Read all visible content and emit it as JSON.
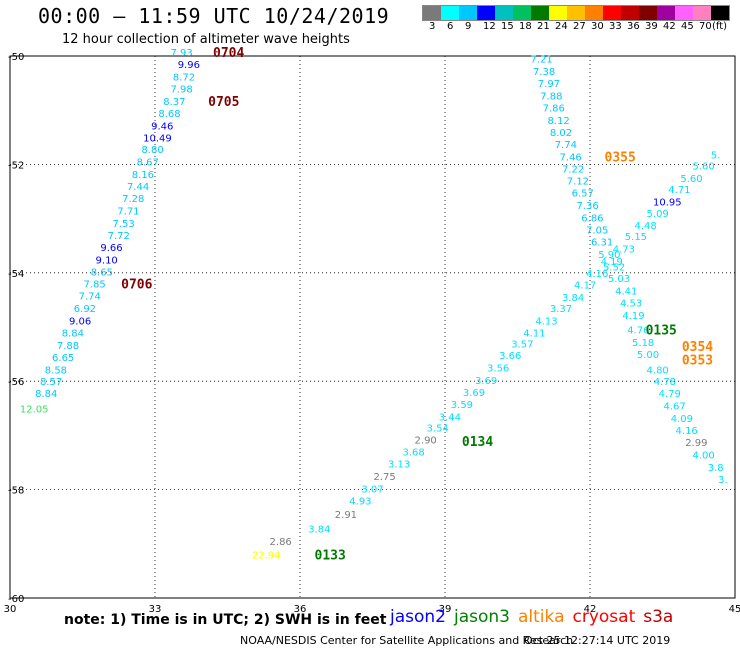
{
  "header": {
    "title": "00:00 – 11:59 UTC 10/24/2019",
    "subtitle": "12 hour collection of altimeter wave heights"
  },
  "legend": {
    "colors": [
      "#7a7a7a",
      "#00ffff",
      "#00c8ff",
      "#0000ff",
      "#00c0c0",
      "#00c060",
      "#007a00",
      "#ffff00",
      "#ffc000",
      "#ff8000",
      "#ff0000",
      "#c00000",
      "#800000",
      "#a000a0",
      "#ff60ff",
      "#ff80c0",
      "#000000"
    ],
    "labels": [
      "3",
      "6",
      "9",
      "12",
      "15",
      "18",
      "21",
      "24",
      "27",
      "30",
      "33",
      "36",
      "39",
      "42",
      "45",
      "70",
      "(ft)"
    ]
  },
  "chart_data": {
    "type": "scatter",
    "xlim": [
      30,
      45
    ],
    "ylim": [
      -60,
      -50
    ],
    "x_ticks": [
      "30",
      "33",
      "36",
      "39",
      "42",
      "45"
    ],
    "y_ticks": [
      "-50",
      "-52",
      "-54",
      "-56",
      "-58",
      "-60"
    ],
    "grid": true,
    "points": [
      {
        "x": 33.55,
        "y": -49.93,
        "v": "7.93",
        "c": "#00c8ff"
      },
      {
        "x": 33.7,
        "y": -50.15,
        "v": "9.96",
        "c": "#0000ff"
      },
      {
        "x": 33.6,
        "y": -50.38,
        "v": "8.72",
        "c": "#00c8ff"
      },
      {
        "x": 33.55,
        "y": -50.6,
        "v": "7.98",
        "c": "#00c8ff"
      },
      {
        "x": 33.4,
        "y": -50.83,
        "v": "8.37",
        "c": "#00c8ff"
      },
      {
        "x": 33.3,
        "y": -51.05,
        "v": "8.68",
        "c": "#00c8ff"
      },
      {
        "x": 33.15,
        "y": -51.28,
        "v": "9.46",
        "c": "#0000ff"
      },
      {
        "x": 33.05,
        "y": -51.5,
        "v": "10.49",
        "c": "#0000ff"
      },
      {
        "x": 32.95,
        "y": -51.72,
        "v": "8.80",
        "c": "#00c8ff"
      },
      {
        "x": 32.85,
        "y": -51.95,
        "v": "8.67",
        "c": "#00c8ff"
      },
      {
        "x": 32.75,
        "y": -52.18,
        "v": "8.16",
        "c": "#00c8ff"
      },
      {
        "x": 32.65,
        "y": -52.4,
        "v": "7.44",
        "c": "#00c8ff"
      },
      {
        "x": 32.55,
        "y": -52.62,
        "v": "7.28",
        "c": "#00c8ff"
      },
      {
        "x": 32.45,
        "y": -52.85,
        "v": "7.71",
        "c": "#00c8ff"
      },
      {
        "x": 32.35,
        "y": -53.08,
        "v": "7.53",
        "c": "#00c8ff"
      },
      {
        "x": 32.25,
        "y": -53.3,
        "v": "7.72",
        "c": "#00c8ff"
      },
      {
        "x": 32.1,
        "y": -53.52,
        "v": "9.66",
        "c": "#0000ff"
      },
      {
        "x": 32.0,
        "y": -53.75,
        "v": "9.10",
        "c": "#0000ff"
      },
      {
        "x": 31.9,
        "y": -53.98,
        "v": "8.65",
        "c": "#00c8ff"
      },
      {
        "x": 31.75,
        "y": -54.2,
        "v": "7.85",
        "c": "#00c8ff"
      },
      {
        "x": 31.65,
        "y": -54.42,
        "v": "7.74",
        "c": "#00c8ff"
      },
      {
        "x": 31.55,
        "y": -54.65,
        "v": "6.92",
        "c": "#00c8ff"
      },
      {
        "x": 31.45,
        "y": -54.88,
        "v": "9.06",
        "c": "#0000ff"
      },
      {
        "x": 31.3,
        "y": -55.1,
        "v": "8.84",
        "c": "#00c8ff"
      },
      {
        "x": 31.2,
        "y": -55.33,
        "v": "7.88",
        "c": "#00c8ff"
      },
      {
        "x": 31.1,
        "y": -55.55,
        "v": "6.65",
        "c": "#00c8ff"
      },
      {
        "x": 30.95,
        "y": -55.78,
        "v": "8.58",
        "c": "#00c8ff"
      },
      {
        "x": 30.85,
        "y": -56.0,
        "v": "8.57",
        "c": "#00c8ff"
      },
      {
        "x": 30.75,
        "y": -56.22,
        "v": "8.84",
        "c": "#00c8ff"
      },
      {
        "x": 30.5,
        "y": -56.5,
        "v": "12.05",
        "c": "#40e060"
      },
      {
        "x": 41.0,
        "y": -50.05,
        "v": "7.21",
        "c": "#00c8ff"
      },
      {
        "x": 41.05,
        "y": -50.28,
        "v": "7.38",
        "c": "#00c8ff"
      },
      {
        "x": 41.15,
        "y": -50.5,
        "v": "7.97",
        "c": "#00c8ff"
      },
      {
        "x": 41.2,
        "y": -50.73,
        "v": "7.88",
        "c": "#00c8ff"
      },
      {
        "x": 41.25,
        "y": -50.95,
        "v": "7.86",
        "c": "#00c8ff"
      },
      {
        "x": 41.35,
        "y": -51.18,
        "v": "8.12",
        "c": "#00c8ff"
      },
      {
        "x": 41.4,
        "y": -51.4,
        "v": "8.02",
        "c": "#00c8ff"
      },
      {
        "x": 41.5,
        "y": -51.62,
        "v": "7.74",
        "c": "#00c8ff"
      },
      {
        "x": 41.6,
        "y": -51.85,
        "v": "7.46",
        "c": "#00c8ff"
      },
      {
        "x": 41.65,
        "y": -52.08,
        "v": "7.22",
        "c": "#00c8ff"
      },
      {
        "x": 41.75,
        "y": -52.3,
        "v": "7.12",
        "c": "#00c8ff"
      },
      {
        "x": 41.85,
        "y": -52.52,
        "v": "6.57",
        "c": "#00c8ff"
      },
      {
        "x": 41.95,
        "y": -52.75,
        "v": "7.36",
        "c": "#00c8ff"
      },
      {
        "x": 42.05,
        "y": -52.98,
        "v": "6.86",
        "c": "#00c8ff"
      },
      {
        "x": 42.15,
        "y": -53.2,
        "v": "7.05",
        "c": "#00c8ff"
      },
      {
        "x": 42.25,
        "y": -53.42,
        "v": "6.31",
        "c": "#00c8ff"
      },
      {
        "x": 42.4,
        "y": -53.65,
        "v": "5.90",
        "c": "#00e0ff"
      },
      {
        "x": 42.5,
        "y": -53.88,
        "v": "5.52",
        "c": "#00e0ff"
      },
      {
        "x": 42.6,
        "y": -54.1,
        "v": "5.03",
        "c": "#00e0ff"
      },
      {
        "x": 42.75,
        "y": -54.33,
        "v": "4.41",
        "c": "#00e0ff"
      },
      {
        "x": 42.85,
        "y": -54.55,
        "v": "4.53",
        "c": "#00e0ff"
      },
      {
        "x": 42.9,
        "y": -54.78,
        "v": "4.19",
        "c": "#00e0ff"
      },
      {
        "x": 43.0,
        "y": -55.05,
        "v": "4.76",
        "c": "#00e0ff"
      },
      {
        "x": 43.1,
        "y": -55.28,
        "v": "5.18",
        "c": "#00e0ff"
      },
      {
        "x": 43.2,
        "y": -55.5,
        "v": "5.00",
        "c": "#00e0ff"
      },
      {
        "x": 43.4,
        "y": -55.78,
        "v": "4.80",
        "c": "#00e0ff"
      },
      {
        "x": 43.55,
        "y": -56.0,
        "v": "4.78",
        "c": "#00e0ff"
      },
      {
        "x": 43.65,
        "y": -56.22,
        "v": "4.79",
        "c": "#00e0ff"
      },
      {
        "x": 43.75,
        "y": -56.45,
        "v": "4.67",
        "c": "#00e0ff"
      },
      {
        "x": 43.9,
        "y": -56.68,
        "v": "4.09",
        "c": "#00e0ff"
      },
      {
        "x": 44.0,
        "y": -56.9,
        "v": "4.16",
        "c": "#00e0ff"
      },
      {
        "x": 44.2,
        "y": -57.12,
        "v": "2.99",
        "c": "#7a7a7a"
      },
      {
        "x": 44.35,
        "y": -57.35,
        "v": "4.00",
        "c": "#00e0ff"
      },
      {
        "x": 44.6,
        "y": -57.58,
        "v": "3.8",
        "c": "#00e0ff"
      },
      {
        "x": 44.75,
        "y": -57.8,
        "v": "3.",
        "c": "#00e0ff"
      },
      {
        "x": 36.4,
        "y": -58.72,
        "v": "3.84",
        "c": "#00e0ff"
      },
      {
        "x": 36.95,
        "y": -58.45,
        "v": "2.91",
        "c": "#7a7a7a"
      },
      {
        "x": 37.25,
        "y": -58.2,
        "v": "4.93",
        "c": "#00e0ff"
      },
      {
        "x": 37.5,
        "y": -57.98,
        "v": "3.07",
        "c": "#00e0ff"
      },
      {
        "x": 37.75,
        "y": -57.75,
        "v": "2.75",
        "c": "#7a7a7a"
      },
      {
        "x": 38.05,
        "y": -57.52,
        "v": "3.13",
        "c": "#00e0ff"
      },
      {
        "x": 38.35,
        "y": -57.3,
        "v": "3.68",
        "c": "#00e0ff"
      },
      {
        "x": 38.6,
        "y": -57.08,
        "v": "2.90",
        "c": "#7a7a7a"
      },
      {
        "x": 38.85,
        "y": -56.85,
        "v": "3.54",
        "c": "#00e0ff"
      },
      {
        "x": 39.1,
        "y": -56.65,
        "v": "3.44",
        "c": "#00e0ff"
      },
      {
        "x": 39.35,
        "y": -56.42,
        "v": "3.59",
        "c": "#00e0ff"
      },
      {
        "x": 39.6,
        "y": -56.2,
        "v": "3.69",
        "c": "#00e0ff"
      },
      {
        "x": 39.85,
        "y": -55.98,
        "v": "3.69",
        "c": "#00e0ff"
      },
      {
        "x": 40.1,
        "y": -55.75,
        "v": "3.56",
        "c": "#00e0ff"
      },
      {
        "x": 40.35,
        "y": -55.52,
        "v": "3.66",
        "c": "#00e0ff"
      },
      {
        "x": 40.6,
        "y": -55.3,
        "v": "3.57",
        "c": "#00e0ff"
      },
      {
        "x": 40.85,
        "y": -55.1,
        "v": "4.11",
        "c": "#00e0ff"
      },
      {
        "x": 41.1,
        "y": -54.88,
        "v": "4.13",
        "c": "#00e0ff"
      },
      {
        "x": 41.4,
        "y": -54.65,
        "v": "3.37",
        "c": "#00e0ff"
      },
      {
        "x": 41.65,
        "y": -54.45,
        "v": "3.84",
        "c": "#00e0ff"
      },
      {
        "x": 41.9,
        "y": -54.22,
        "v": "4.17",
        "c": "#00e0ff"
      },
      {
        "x": 42.15,
        "y": -54.0,
        "v": "4.16",
        "c": "#00e0ff"
      },
      {
        "x": 42.45,
        "y": -53.78,
        "v": "4.19",
        "c": "#00e0ff"
      },
      {
        "x": 42.7,
        "y": -53.55,
        "v": "4.73",
        "c": "#00e0ff"
      },
      {
        "x": 42.95,
        "y": -53.32,
        "v": "5.15",
        "c": "#00e0ff"
      },
      {
        "x": 43.15,
        "y": -53.12,
        "v": "4.48",
        "c": "#00e0ff"
      },
      {
        "x": 43.4,
        "y": -52.9,
        "v": "5.09",
        "c": "#00e0ff"
      },
      {
        "x": 43.6,
        "y": -52.68,
        "v": "10.95",
        "c": "#0000ff"
      },
      {
        "x": 43.85,
        "y": -52.45,
        "v": "4.71",
        "c": "#00e0ff"
      },
      {
        "x": 44.1,
        "y": -52.25,
        "v": "5.60",
        "c": "#00e0ff"
      },
      {
        "x": 44.35,
        "y": -52.02,
        "v": "5.60",
        "c": "#00e0ff"
      },
      {
        "x": 44.6,
        "y": -51.82,
        "v": "5.",
        "c": "#00e0ff"
      },
      {
        "x": 35.6,
        "y": -58.95,
        "v": "2.86",
        "c": "#7a7a7a"
      },
      {
        "x": 35.3,
        "y": -59.2,
        "v": "22.94",
        "c": "#ffff00"
      }
    ],
    "labels": [
      {
        "x": 34.2,
        "y": -49.93,
        "t": "0704",
        "c": "#800000"
      },
      {
        "x": 34.1,
        "y": -50.83,
        "t": "0705",
        "c": "#800000"
      },
      {
        "x": 32.3,
        "y": -54.2,
        "t": "0706",
        "c": "#800000"
      },
      {
        "x": 42.3,
        "y": -51.85,
        "t": "0355",
        "c": "#ff8000"
      },
      {
        "x": 43.15,
        "y": -55.05,
        "t": "0135",
        "c": "#007a00"
      },
      {
        "x": 43.9,
        "y": -55.35,
        "t": "0354",
        "c": "#ff8000"
      },
      {
        "x": 43.9,
        "y": -55.6,
        "t": "0353",
        "c": "#ff8000"
      },
      {
        "x": 39.35,
        "y": -57.1,
        "t": "0134",
        "c": "#007a00"
      },
      {
        "x": 36.3,
        "y": -59.2,
        "t": "0133",
        "c": "#007a00"
      }
    ]
  },
  "footer": {
    "note": "note: 1) Time is in UTC; 2) SWH is in feet",
    "satellites": [
      {
        "name": "jason2",
        "color": "#0000ff"
      },
      {
        "name": "jason3",
        "color": "#008000"
      },
      {
        "name": "altika",
        "color": "#ff8000"
      },
      {
        "name": "cryosat",
        "color": "#ff0000"
      },
      {
        "name": "s3a",
        "color": "#c00000"
      }
    ],
    "credit": "NOAA/NESDIS Center for Satellite Applications and Research",
    "timestamp": "Oct 25 12:27:14 UTC 2019"
  }
}
